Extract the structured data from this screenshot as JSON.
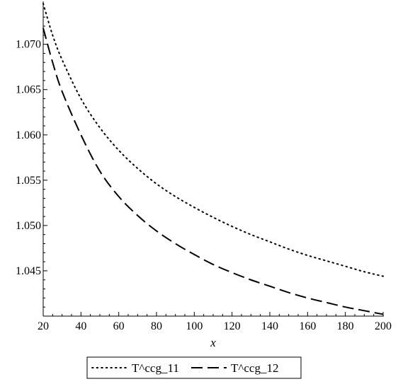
{
  "chart_data": {
    "type": "line",
    "title": "",
    "xlabel": "x",
    "ylabel": "",
    "xlim": [
      20,
      200
    ],
    "ylim": [
      1.04,
      1.0745
    ],
    "xticks": [
      20,
      40,
      60,
      80,
      100,
      120,
      140,
      160,
      180,
      200
    ],
    "xtick_labels": [
      "20",
      "40",
      "60",
      "80",
      "100",
      "120",
      "140",
      "160",
      "180",
      "200"
    ],
    "yticks": [
      1.045,
      1.05,
      1.055,
      1.06,
      1.065,
      1.07
    ],
    "ytick_labels": [
      "1.045",
      "1.050",
      "1.055",
      "1.060",
      "1.065",
      "1.070"
    ],
    "grid": false,
    "legend_position": "bottom-center",
    "series": [
      {
        "name": "T^ccg_11",
        "style": "dotted",
        "color": "#000000",
        "x": [
          20,
          25,
          30,
          40,
          50,
          60,
          70,
          80,
          90,
          100,
          110,
          120,
          130,
          140,
          150,
          160,
          170,
          180,
          190,
          200
        ],
        "y": [
          1.0745,
          1.071,
          1.0683,
          1.064,
          1.0608,
          1.0583,
          1.0563,
          1.0546,
          1.0532,
          1.052,
          1.0509,
          1.0499,
          1.049,
          1.0482,
          1.0474,
          1.0467,
          1.0461,
          1.0455,
          1.0449,
          1.0444
        ]
      },
      {
        "name": "T^ccg_12",
        "style": "dashed",
        "color": "#000000",
        "x": [
          20,
          25,
          30,
          40,
          50,
          60,
          70,
          80,
          90,
          100,
          110,
          120,
          130,
          140,
          150,
          160,
          170,
          180,
          190,
          200
        ],
        "y": [
          1.0718,
          1.068,
          1.0648,
          1.06,
          1.056,
          1.0532,
          1.0511,
          1.0494,
          1.048,
          1.0468,
          1.0457,
          1.0448,
          1.044,
          1.0433,
          1.0426,
          1.042,
          1.0415,
          1.041,
          1.0406,
          1.0402
        ]
      }
    ]
  }
}
